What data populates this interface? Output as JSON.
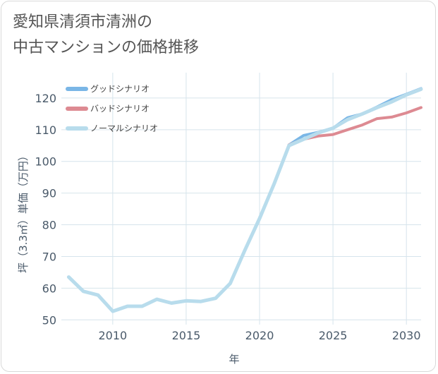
{
  "title": {
    "line1": "愛知県清須市清洲の",
    "line2": "中古マンションの価格推移"
  },
  "chart_data": {
    "type": "line",
    "xlabel": "年",
    "ylabel": "坪（3.3㎡）単価（万円）",
    "xlim": [
      2006.5,
      2031
    ],
    "ylim": [
      48.5,
      128
    ],
    "xticks": [
      2010,
      2015,
      2020,
      2025,
      2030
    ],
    "yticks": [
      50,
      60,
      70,
      80,
      90,
      100,
      110,
      120
    ],
    "grid": true,
    "legend_position": "top-left",
    "series": [
      {
        "name": "グッドシナリオ",
        "color": "#7ab6e6",
        "width": 4,
        "x": [
          2022,
          2023,
          2024,
          2025,
          2026,
          2027,
          2028,
          2029,
          2030,
          2031
        ],
        "y": [
          105.2,
          108.2,
          109.2,
          110.5,
          113.8,
          115.0,
          117.2,
          119.5,
          121.2,
          123.0
        ]
      },
      {
        "name": "バッドシナリオ",
        "color": "#dd8a92",
        "width": 4,
        "x": [
          2022,
          2023,
          2024,
          2025,
          2026,
          2027,
          2028,
          2029,
          2030,
          2031
        ],
        "y": [
          105.2,
          107.0,
          108.0,
          108.5,
          110.0,
          111.5,
          113.5,
          114.0,
          115.3,
          117.0
        ]
      },
      {
        "name": "ノーマルシナリオ",
        "color": "#b8dcec",
        "width": 5,
        "x": [
          2007,
          2008,
          2009,
          2010,
          2011,
          2012,
          2013,
          2014,
          2015,
          2016,
          2017,
          2018,
          2019,
          2020,
          2021,
          2022,
          2023,
          2024,
          2025,
          2026,
          2027,
          2028,
          2029,
          2030,
          2031
        ],
        "y": [
          63.5,
          59.0,
          57.8,
          52.7,
          54.3,
          54.3,
          56.5,
          55.3,
          56.0,
          55.8,
          56.8,
          61.5,
          72.0,
          82.0,
          93.0,
          105.0,
          107.0,
          109.0,
          110.5,
          113.2,
          115.0,
          117.0,
          118.8,
          121.0,
          122.8
        ]
      }
    ]
  }
}
